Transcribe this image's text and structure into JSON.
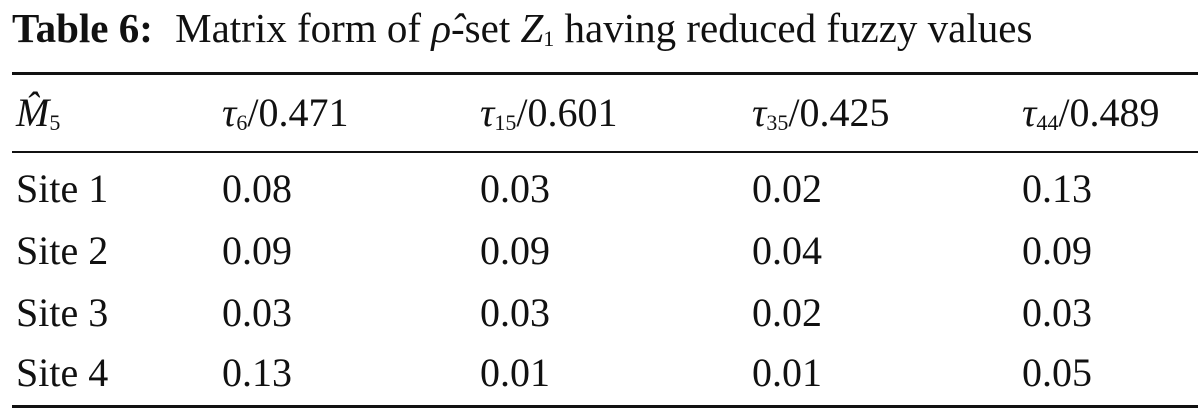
{
  "caption": {
    "label": "Table 6:",
    "text_before": "Matrix form of",
    "symbol": "ρ̂",
    "text_middle": "-set",
    "set_symbol": "Z",
    "set_sub": "1",
    "text_after": "having reduced fuzzy values"
  },
  "table": {
    "header": [
      {
        "symbol": "M̂",
        "sub": "5",
        "rest": ""
      },
      {
        "symbol": "τ",
        "sub": "6",
        "rest": "/0.471"
      },
      {
        "symbol": "τ",
        "sub": "15",
        "rest": "/0.601"
      },
      {
        "symbol": "τ",
        "sub": "35",
        "rest": "/0.425"
      },
      {
        "symbol": "τ",
        "sub": "44",
        "rest": "/0.489"
      }
    ],
    "rows": [
      [
        "Site 1",
        "0.08",
        "0.03",
        "0.02",
        "0.13"
      ],
      [
        "Site 2",
        "0.09",
        "0.09",
        "0.04",
        "0.09"
      ],
      [
        "Site 3",
        "0.03",
        "0.03",
        "0.02",
        "0.03"
      ],
      [
        "Site 4",
        "0.13",
        "0.01",
        "0.01",
        "0.05"
      ]
    ]
  }
}
